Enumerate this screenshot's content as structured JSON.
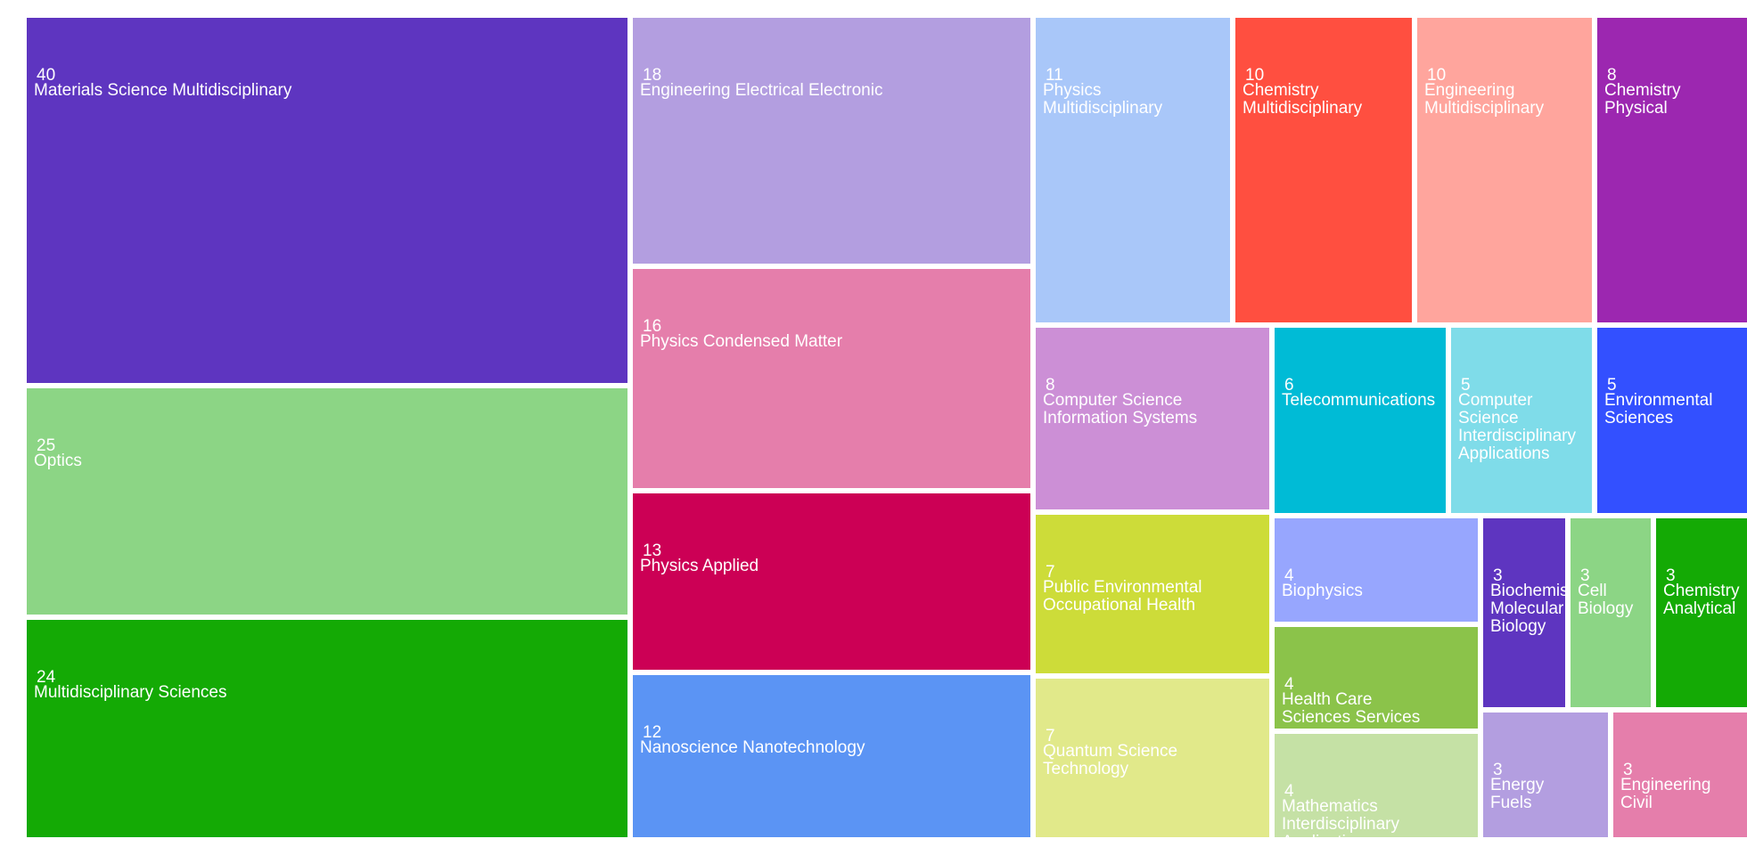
{
  "chart_data": {
    "type": "treemap",
    "title": "",
    "items": [
      {
        "value": 40,
        "label": "Materials Science Multidisciplinary",
        "color": "#5e35c0"
      },
      {
        "value": 25,
        "label": "Optics",
        "color": "#8cd585"
      },
      {
        "value": 24,
        "label": "Multidisciplinary Sciences",
        "color": "#14aa05"
      },
      {
        "value": 18,
        "label": "Engineering Electrical Electronic",
        "color": "#b39ee0"
      },
      {
        "value": 16,
        "label": "Physics Condensed Matter",
        "color": "#e57eab"
      },
      {
        "value": 13,
        "label": "Physics Applied",
        "color": "#cc0055"
      },
      {
        "value": 12,
        "label": "Nanoscience Nanotechnology",
        "color": "#5b94f4"
      },
      {
        "value": 11,
        "label": "Physics\nMultidisciplinary",
        "color": "#a9c7f9"
      },
      {
        "value": 10,
        "label": "Chemistry\nMultidisciplinary",
        "color": "#ff4f40"
      },
      {
        "value": 10,
        "label": "Engineering\nMultidisciplinary",
        "color": "#ffa59d"
      },
      {
        "value": 8,
        "label": "Chemistry\nPhysical",
        "color": "#9c27b0"
      },
      {
        "value": 8,
        "label": "Computer Science\nInformation Systems",
        "color": "#cc8fd6"
      },
      {
        "value": 6,
        "label": "Telecommunications",
        "color": "#00bbd6"
      },
      {
        "value": 5,
        "label": "Computer\nScience\nInterdisciplinary\nApplications",
        "color": "#7fdce9"
      },
      {
        "value": 5,
        "label": "Environmental\nSciences",
        "color": "#3350ff"
      },
      {
        "value": 7,
        "label": "Public Environmental\nOccupational Health",
        "color": "#cddc39"
      },
      {
        "value": 7,
        "label": "Quantum Science\nTechnology",
        "color": "#e1e98a"
      },
      {
        "value": 4,
        "label": "Biophysics",
        "color": "#97a6fe"
      },
      {
        "value": 4,
        "label": "Health Care\nSciences Services",
        "color": "#8bc34a"
      },
      {
        "value": 4,
        "label": "Mathematics\nInterdisciplinary\nApplications",
        "color": "#c5e1a5"
      },
      {
        "value": 3,
        "label": "Biochemistry\nMolecular\nBiology",
        "color": "#5e35c0"
      },
      {
        "value": 3,
        "label": "Cell\nBiology",
        "color": "#8cd585"
      },
      {
        "value": 3,
        "label": "Chemistry\nAnalytical",
        "color": "#14aa05"
      },
      {
        "value": 3,
        "label": "Energy\nFuels",
        "color": "#b39ee0"
      },
      {
        "value": 3,
        "label": "Engineering\nCivil",
        "color": "#e57eab"
      }
    ]
  }
}
